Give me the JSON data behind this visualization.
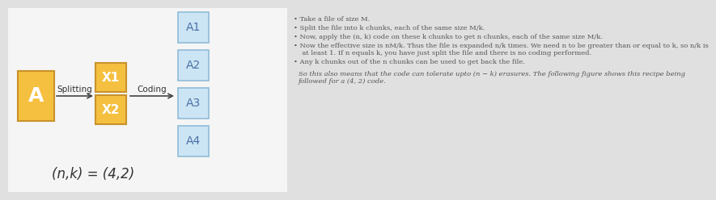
{
  "bg_color": "#e0e0e0",
  "left_bg": "#f5f5f5",
  "orange_fill": "#f5c040",
  "orange_border": "#c8922a",
  "blue_fill": "#cce5f5",
  "blue_border": "#90bcd8",
  "text_color": "#555555",
  "formula_text": "(n,k) = (4,2)",
  "box_A_label": "A",
  "splitting_label": "Splitting",
  "coding_label": "Coding",
  "x_labels": [
    "X1",
    "X2"
  ],
  "a_labels": [
    "A1",
    "A2",
    "A3",
    "A4"
  ],
  "bullet_points": [
    "Take a file of size M.",
    "Split the file into k chunks, each of the same size M/k.",
    "Now, apply the (n, k) code on these k chunks to get n chunks, each of the same size M/k.",
    "Now the effective size is nM/k. Thus the file is expanded n/k times. We need n to be greater than or equal to k, so n/k is\n    at least 1. If n equals k, you have just split the file and there is no coding performed.",
    "Any k chunks out of the n chunks can be used to get back the file."
  ],
  "summary_line1": "So this also means that the code can tolerate upto (n − k) erasures. The following figure shows this recipe being",
  "summary_line2": "followed for a (4, 2) code."
}
